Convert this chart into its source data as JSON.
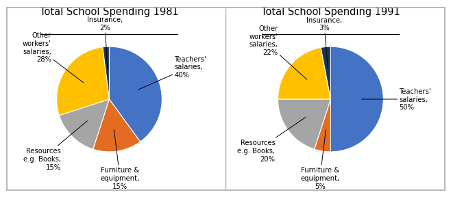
{
  "charts": [
    {
      "title": "Total School Spending 1981",
      "slices": [
        {
          "label": "Teachers'\nsalaries,\n40%",
          "value": 40
        },
        {
          "label": "Furniture &\nequipment,\n15%",
          "value": 15
        },
        {
          "label": "Resources\ne.g. Books,\n15%",
          "value": 15
        },
        {
          "label": "Other\nworkers'\nsalaries,\n28%",
          "value": 28
        },
        {
          "label": "Insurance,\n2%",
          "value": 2
        }
      ],
      "slice_colors": [
        "#4472C4",
        "#E36C22",
        "#A5A5A5",
        "#FFC000",
        "#17375E"
      ],
      "label_angles": [
        null,
        null,
        null,
        null,
        null
      ],
      "label_positions": [
        {
          "r_arrow": 0.62,
          "r_text": 1.28,
          "ha": "left",
          "va": "center"
        },
        {
          "r_arrow": 0.62,
          "r_text": 1.28,
          "ha": "center",
          "va": "top"
        },
        {
          "r_arrow": 0.62,
          "r_text": 1.32,
          "ha": "right",
          "va": "center"
        },
        {
          "r_arrow": 0.62,
          "r_text": 1.32,
          "ha": "right",
          "va": "center"
        },
        {
          "r_arrow": 0.62,
          "r_text": 1.28,
          "ha": "center",
          "va": "center"
        }
      ]
    },
    {
      "title": "Total School Spending 1991",
      "slices": [
        {
          "label": "Teachers'\nsalaries,\n50%",
          "value": 50
        },
        {
          "label": "Furniture &\nequipment,\n5%",
          "value": 5
        },
        {
          "label": "Resources\ne.g. Books,\n20%",
          "value": 20
        },
        {
          "label": "Other\nworkers'\nsalaries,\n22%",
          "value": 22
        },
        {
          "label": "Insurance,\n3%",
          "value": 3
        }
      ],
      "slice_colors": [
        "#4472C4",
        "#E36C22",
        "#A5A5A5",
        "#FFC000",
        "#17375E"
      ],
      "label_positions": [
        {
          "r_arrow": 0.62,
          "r_text": 1.28,
          "ha": "left",
          "va": "center"
        },
        {
          "r_arrow": 0.62,
          "r_text": 1.28,
          "ha": "center",
          "va": "top"
        },
        {
          "r_arrow": 0.62,
          "r_text": 1.32,
          "ha": "right",
          "va": "center"
        },
        {
          "r_arrow": 0.62,
          "r_text": 1.32,
          "ha": "right",
          "va": "center"
        },
        {
          "r_arrow": 0.62,
          "r_text": 1.28,
          "ha": "center",
          "va": "center"
        }
      ]
    }
  ],
  "bg_color": "#FFFFFF",
  "text_color": "#000000",
  "title_fontsize": 10.5,
  "label_fontsize": 7.2,
  "border_color": "#AAAAAA"
}
